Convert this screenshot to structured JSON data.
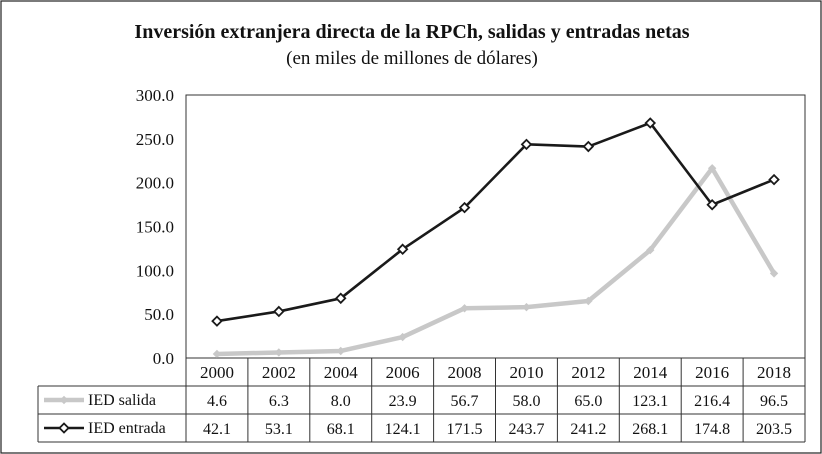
{
  "chart_data": {
    "type": "line",
    "title": "Inversión extranjera directa de la RPCh, salidas y entradas netas",
    "subtitle": "(en miles de millones de dólares)",
    "categories": [
      "2000",
      "2002",
      "2004",
      "2006",
      "2008",
      "2010",
      "2012",
      "2014",
      "2016",
      "2018"
    ],
    "ylim": [
      0,
      300
    ],
    "yticks": [
      "0.0",
      "50.0",
      "100.0",
      "150.0",
      "200.0",
      "250.0",
      "300.0"
    ],
    "grid": false,
    "legend": "data-table-left",
    "series": [
      {
        "name": "IED salida",
        "color": "#c8c8c8",
        "marker": "diamond",
        "values": [
          4.6,
          6.3,
          8.0,
          23.9,
          56.7,
          58.0,
          65.0,
          123.1,
          216.4,
          96.5
        ],
        "labels": [
          "4.6",
          "6.3",
          "8.0",
          "23.9",
          "56.7",
          "58.0",
          "65.0",
          "123.1",
          "216.4",
          "96.5"
        ]
      },
      {
        "name": "IED entrada",
        "color": "#1a1a1a",
        "marker": "diamond-open",
        "values": [
          42.1,
          53.1,
          68.1,
          124.1,
          171.5,
          243.7,
          241.2,
          268.1,
          174.8,
          203.5
        ],
        "labels": [
          "42.1",
          "53.1",
          "68.1",
          "124.1",
          "171.5",
          "243.7",
          "241.2",
          "268.1",
          "174.8",
          "203.5"
        ]
      }
    ]
  }
}
